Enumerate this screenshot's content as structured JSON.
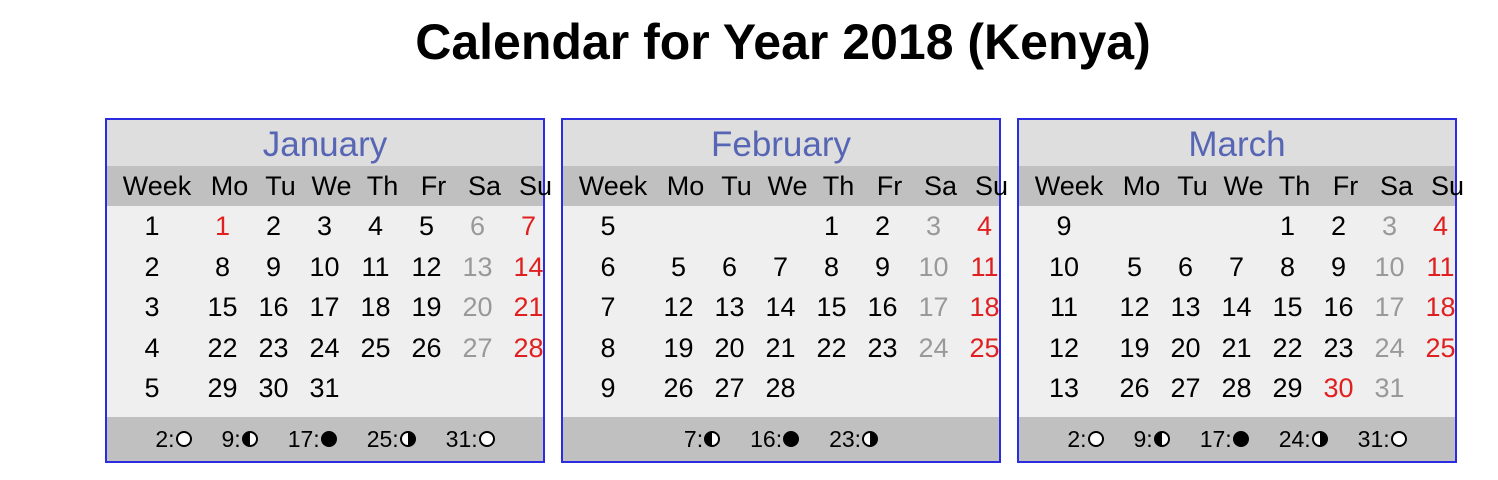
{
  "title": "Calendar for Year 2018 (Kenya)",
  "weekday_headers": [
    "Week",
    "Mo",
    "Tu",
    "We",
    "Th",
    "Fr",
    "Sa",
    "Su"
  ],
  "colors": {
    "border": "#2b2be0",
    "month_name": "#5766b4",
    "saturday": "#999999",
    "sunday_holiday": "#e02020",
    "header_bg": "#c0c0c0",
    "body_bg": "#efefef"
  },
  "months": [
    {
      "name": "January",
      "weeks": [
        {
          "week": "1",
          "days": [
            "1",
            "2",
            "3",
            "4",
            "5",
            "6",
            "7"
          ]
        },
        {
          "week": "2",
          "days": [
            "8",
            "9",
            "10",
            "11",
            "12",
            "13",
            "14"
          ]
        },
        {
          "week": "3",
          "days": [
            "15",
            "16",
            "17",
            "18",
            "19",
            "20",
            "21"
          ]
        },
        {
          "week": "4",
          "days": [
            "22",
            "23",
            "24",
            "25",
            "26",
            "27",
            "28"
          ]
        },
        {
          "week": "5",
          "days": [
            "29",
            "30",
            "31",
            "",
            "",
            "",
            ""
          ]
        }
      ],
      "holidays": [
        "1"
      ],
      "moon_phases": [
        {
          "day": "2:",
          "phase": "full"
        },
        {
          "day": "9:",
          "phase": "last"
        },
        {
          "day": "17:",
          "phase": "new"
        },
        {
          "day": "25:",
          "phase": "first"
        },
        {
          "day": "31:",
          "phase": "full"
        }
      ]
    },
    {
      "name": "February",
      "weeks": [
        {
          "week": "5",
          "days": [
            "",
            "",
            "",
            "1",
            "2",
            "3",
            "4"
          ]
        },
        {
          "week": "6",
          "days": [
            "5",
            "6",
            "7",
            "8",
            "9",
            "10",
            "11"
          ]
        },
        {
          "week": "7",
          "days": [
            "12",
            "13",
            "14",
            "15",
            "16",
            "17",
            "18"
          ]
        },
        {
          "week": "8",
          "days": [
            "19",
            "20",
            "21",
            "22",
            "23",
            "24",
            "25"
          ]
        },
        {
          "week": "9",
          "days": [
            "26",
            "27",
            "28",
            "",
            "",
            "",
            ""
          ]
        }
      ],
      "holidays": [],
      "moon_phases": [
        {
          "day": "7:",
          "phase": "last"
        },
        {
          "day": "16:",
          "phase": "new"
        },
        {
          "day": "23:",
          "phase": "first"
        }
      ]
    },
    {
      "name": "March",
      "weeks": [
        {
          "week": "9",
          "days": [
            "",
            "",
            "",
            "1",
            "2",
            "3",
            "4"
          ]
        },
        {
          "week": "10",
          "days": [
            "5",
            "6",
            "7",
            "8",
            "9",
            "10",
            "11"
          ]
        },
        {
          "week": "11",
          "days": [
            "12",
            "13",
            "14",
            "15",
            "16",
            "17",
            "18"
          ]
        },
        {
          "week": "12",
          "days": [
            "19",
            "20",
            "21",
            "22",
            "23",
            "24",
            "25"
          ]
        },
        {
          "week": "13",
          "days": [
            "26",
            "27",
            "28",
            "29",
            "30",
            "31",
            ""
          ]
        }
      ],
      "holidays": [
        "30"
      ],
      "moon_phases": [
        {
          "day": "2:",
          "phase": "full"
        },
        {
          "day": "9:",
          "phase": "last"
        },
        {
          "day": "17:",
          "phase": "new"
        },
        {
          "day": "24:",
          "phase": "first"
        },
        {
          "day": "31:",
          "phase": "full"
        }
      ]
    }
  ]
}
